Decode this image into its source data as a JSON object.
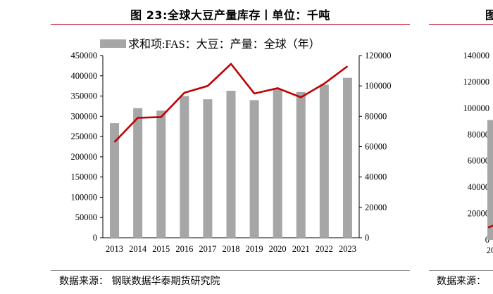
{
  "left_panel": {
    "title": "图 23:全球大豆产量库存丨单位：千吨",
    "source": "数据来源：  钢联数据华泰期货研究院"
  },
  "right_panel": {
    "title_partial": "图",
    "source_partial": "数据来源："
  },
  "chart_data": [
    {
      "type": "bar+line",
      "title": "图 23:全球大豆产量库存丨单位：千吨",
      "categories": [
        "2013",
        "2014",
        "2015",
        "2016",
        "2017",
        "2018",
        "2019",
        "2020",
        "2021",
        "2022",
        "2023"
      ],
      "series": [
        {
          "name": "求和项:FAS：大豆：产量：全球（年）",
          "type": "bar",
          "axis": "left",
          "color": "#a6a6a6",
          "values": [
            283000,
            320000,
            314000,
            350000,
            342000,
            363000,
            340000,
            367000,
            360000,
            378000,
            395000
          ]
        },
        {
          "name": "",
          "type": "line",
          "axis": "right",
          "color": "#c00000",
          "values": [
            63000,
            79000,
            79500,
            95500,
            100000,
            114500,
            95000,
            98500,
            92500,
            101500,
            113000
          ]
        }
      ],
      "left_axis": {
        "min": 0,
        "max": 450000,
        "ticks": [
          0,
          50000,
          100000,
          150000,
          200000,
          250000,
          300000,
          350000,
          400000,
          450000
        ]
      },
      "right_axis": {
        "min": 0,
        "max": 120000,
        "ticks": [
          0,
          20000,
          40000,
          60000,
          80000,
          100000,
          120000
        ]
      },
      "legend": "top",
      "grid": false
    },
    {
      "type": "bar+line",
      "partial": true,
      "categories": [
        "20"
      ],
      "left_axis": {
        "min": 0,
        "max": 140000,
        "ticks": [
          0,
          20000,
          40000,
          60000,
          80000,
          100000,
          120000,
          140000
        ]
      },
      "bar_color": "#a6a6a6",
      "line_color": "#c00000",
      "first_bar_value": 91000,
      "first_line_value": 11000
    }
  ]
}
